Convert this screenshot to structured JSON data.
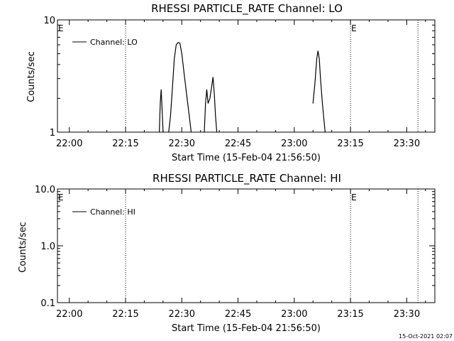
{
  "timestamp": "15-Oct-2021 02:07",
  "chart_data": [
    {
      "type": "line",
      "title": "RHESSI PARTICLE_RATE Channel: LO",
      "xlabel": "Start Time (15-Feb-04 21:56:50)",
      "ylabel": "Counts/sec",
      "yscale": "log",
      "ylim": [
        1,
        10
      ],
      "y_tick_labels": [
        "1",
        "10"
      ],
      "xlim": [
        "21:56:50",
        "23:37:30"
      ],
      "x_tick_labels": [
        "22:00",
        "22:15",
        "22:30",
        "22:45",
        "23:00",
        "23:15",
        "23:30"
      ],
      "vertical_markers": [
        "22:15",
        "23:15",
        "23:33"
      ],
      "event_labels": [
        {
          "label": "E",
          "at": "21:56:50"
        },
        {
          "label": "E",
          "at": "23:15"
        }
      ],
      "legend": {
        "placement": "top-left",
        "entries": [
          "Channel: LO"
        ]
      },
      "series": [
        {
          "name": "Channel: LO",
          "segments": [
            [
              [
                "22:24:00",
                1
              ],
              [
                "22:24:15",
                1.8
              ],
              [
                "22:24:30",
                2.4
              ],
              [
                "22:24:45",
                1.6
              ],
              [
                "22:25:00",
                1
              ]
            ],
            [
              [
                "22:26:30",
                1
              ],
              [
                "22:27:00",
                1.4
              ],
              [
                "22:27:30",
                2.5
              ],
              [
                "22:28:00",
                4.5
              ],
              [
                "22:28:30",
                6.0
              ],
              [
                "22:29:00",
                6.3
              ],
              [
                "22:29:30",
                6.2
              ],
              [
                "22:30:00",
                5.0
              ],
              [
                "22:30:30",
                3.6
              ],
              [
                "22:31:00",
                2.6
              ],
              [
                "22:31:30",
                1.9
              ],
              [
                "22:32:00",
                1.4
              ],
              [
                "22:32:30",
                1
              ]
            ],
            [
              [
                "22:36:00",
                1
              ],
              [
                "22:36:20",
                1.8
              ],
              [
                "22:36:40",
                2.4
              ],
              [
                "22:37:00",
                1.8
              ],
              [
                "22:37:30",
                2.0
              ],
              [
                "22:38:00",
                2.6
              ],
              [
                "22:38:20",
                3.1
              ],
              [
                "22:38:40",
                2.2
              ],
              [
                "22:39:00",
                1.4
              ],
              [
                "22:39:20",
                1
              ]
            ],
            [
              [
                "23:05:00",
                1.8
              ],
              [
                "23:05:30",
                2.7
              ],
              [
                "23:06:00",
                4.5
              ],
              [
                "23:06:20",
                5.3
              ],
              [
                "23:06:40",
                4.5
              ],
              [
                "23:07:00",
                3.0
              ],
              [
                "23:07:30",
                1.8
              ],
              [
                "23:08:00",
                1.2
              ],
              [
                "23:08:15",
                1
              ]
            ]
          ]
        }
      ]
    },
    {
      "type": "line",
      "title": "RHESSI PARTICLE_RATE Channel: HI",
      "xlabel": "Start Time (15-Feb-04 21:56:50)",
      "ylabel": "Counts/sec",
      "yscale": "log",
      "ylim": [
        0.1,
        10
      ],
      "y_tick_labels": [
        "0.1",
        "1.0",
        "10.0"
      ],
      "xlim": [
        "21:56:50",
        "23:37:30"
      ],
      "x_tick_labels": [
        "22:00",
        "22:15",
        "22:30",
        "22:45",
        "23:00",
        "23:15",
        "23:30"
      ],
      "vertical_markers": [
        "22:15",
        "23:15",
        "23:33"
      ],
      "event_labels": [
        {
          "label": "E",
          "at": "21:56:50"
        },
        {
          "label": "E",
          "at": "23:15"
        }
      ],
      "legend": {
        "placement": "top-left",
        "entries": [
          "Channel: HI"
        ]
      },
      "series": [
        {
          "name": "Channel: HI",
          "segments": []
        }
      ]
    }
  ]
}
